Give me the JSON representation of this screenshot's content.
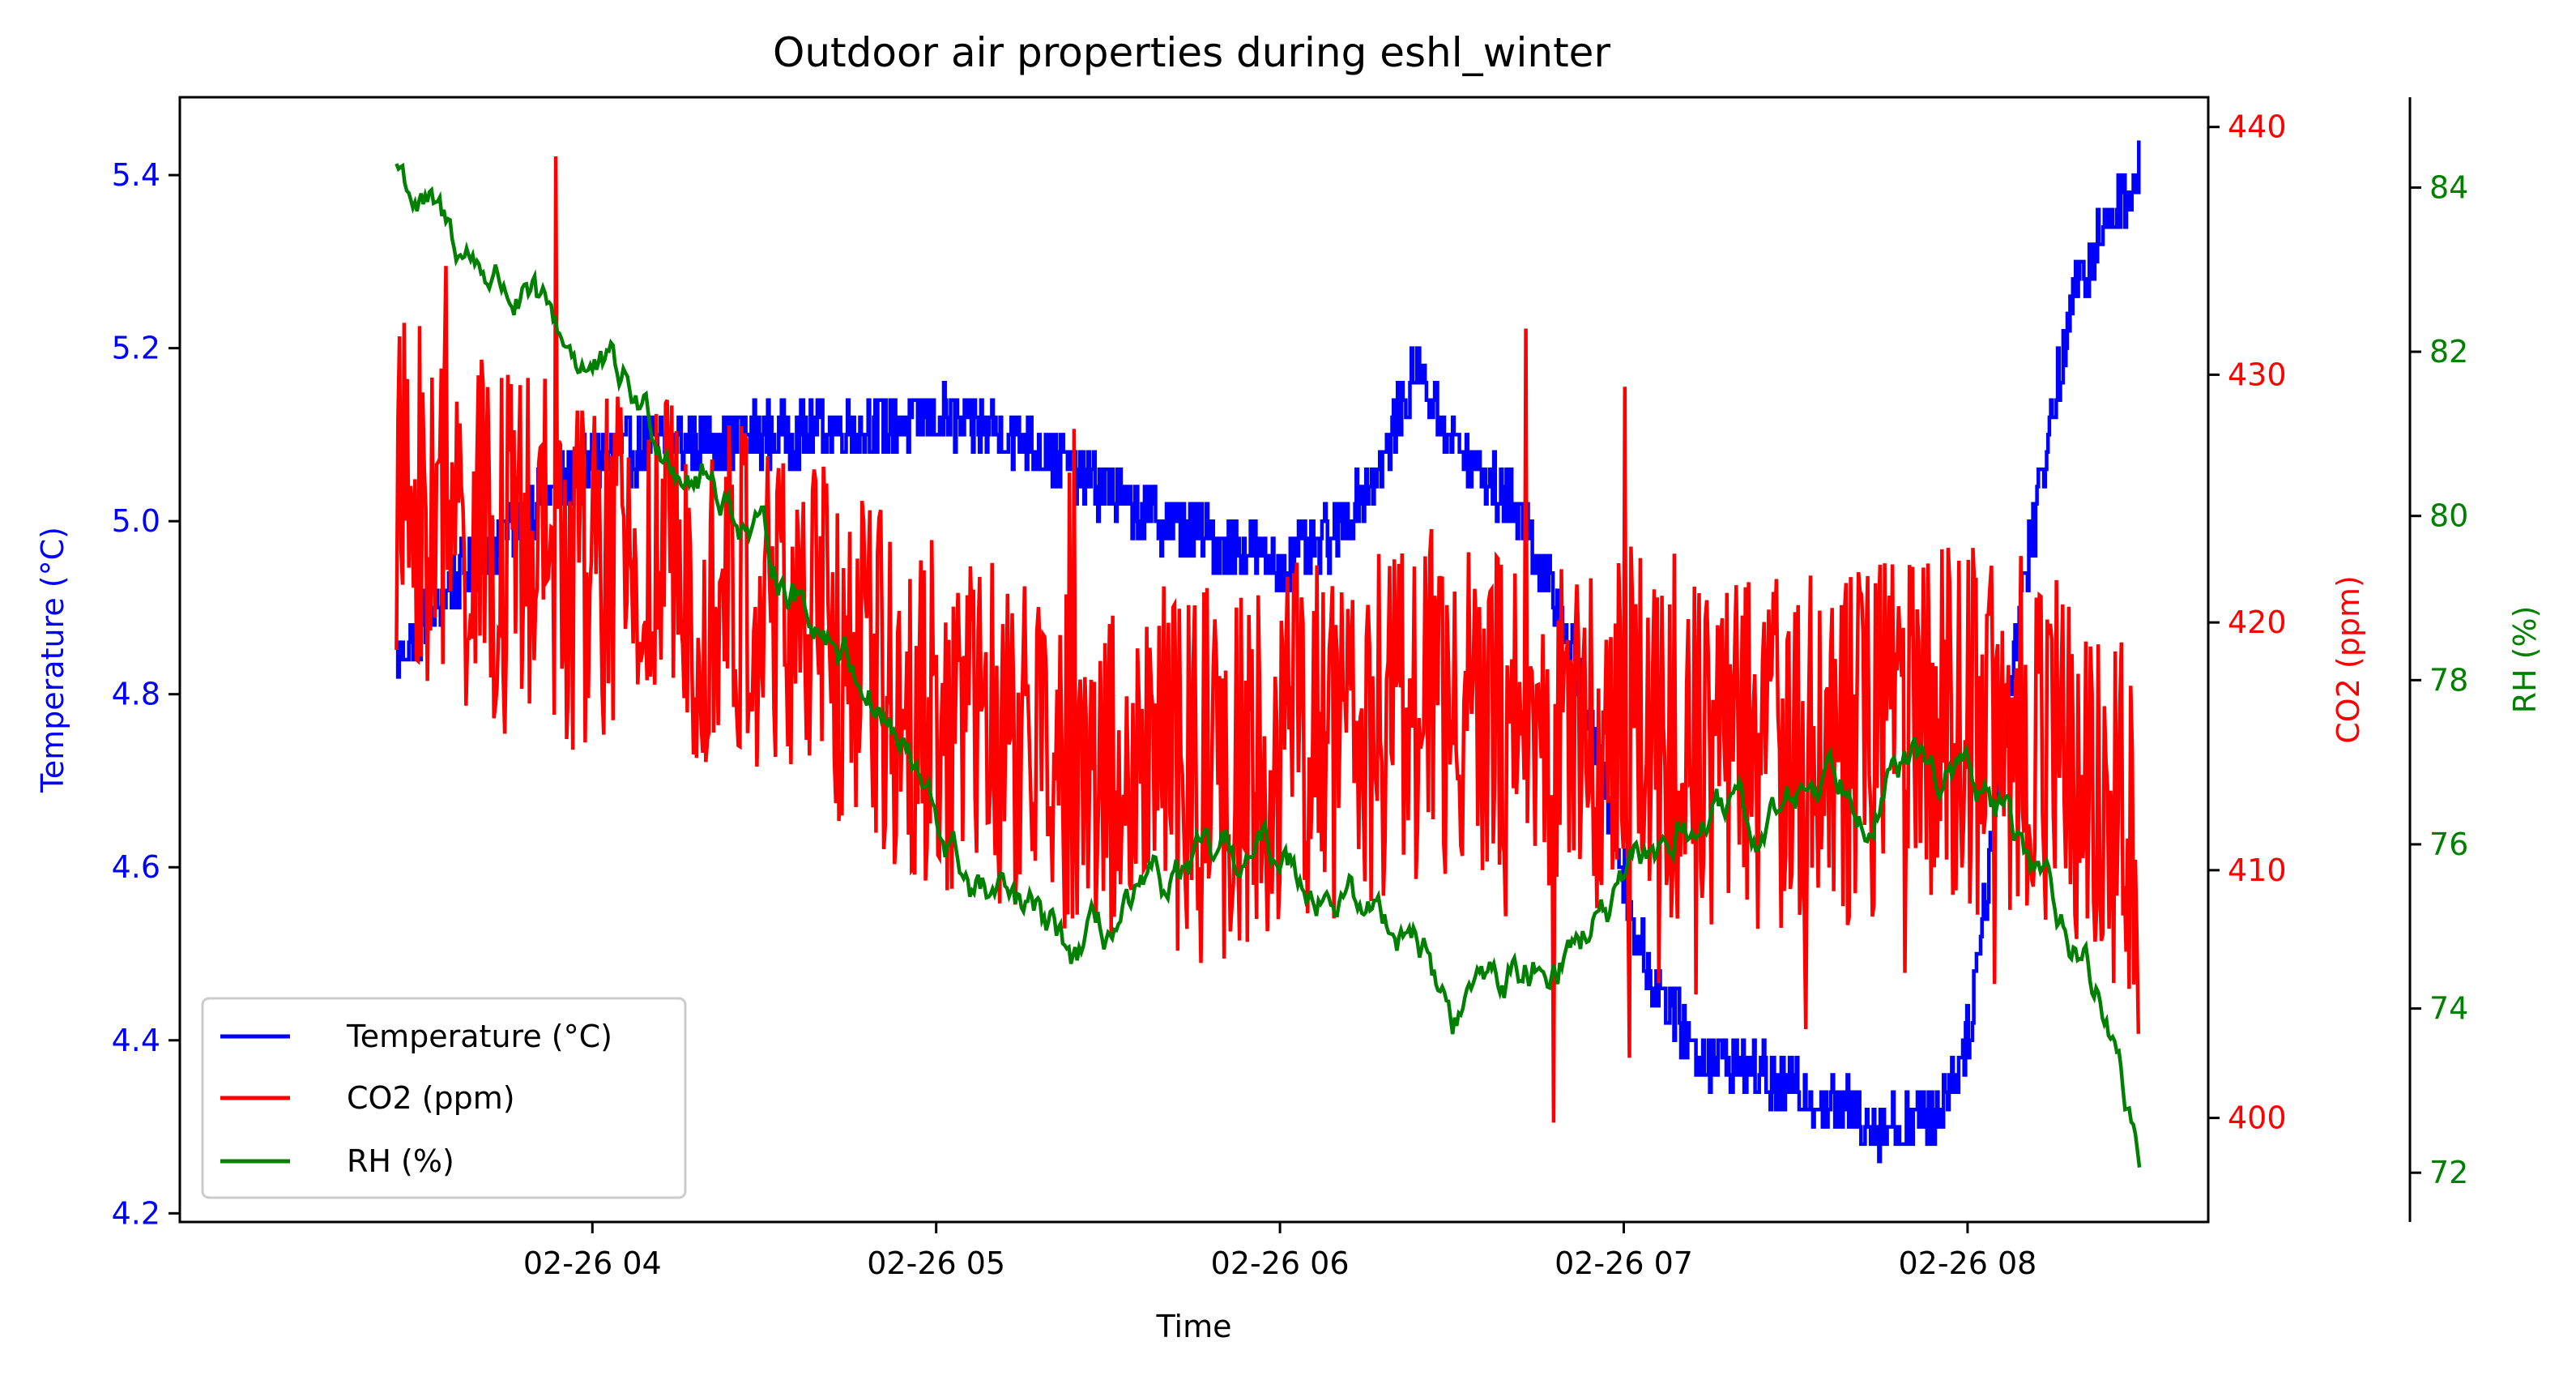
{
  "chart_data": {
    "type": "line",
    "title": "Outdoor air properties during eshl_winter",
    "xlabel": "Time",
    "x_ticks": [
      "02-26 04",
      "02-26 05",
      "02-26 06",
      "02-26 07",
      "02-26 08"
    ],
    "x_tick_hours": [
      4,
      5,
      6,
      7,
      8
    ],
    "xlim_hours": [
      2.8,
      8.7
    ],
    "axes": [
      {
        "id": "temp",
        "label": "Temperature (°C)",
        "color": "#0000ff",
        "side": "left",
        "ylim": [
          4.19,
          5.49
        ],
        "ticks": [
          "4.2",
          "4.4",
          "4.6",
          "4.8",
          "5.0",
          "5.2",
          "5.4"
        ],
        "tick_values": [
          4.2,
          4.4,
          4.6,
          4.8,
          5.0,
          5.2,
          5.4
        ]
      },
      {
        "id": "co2",
        "label": "CO2 (ppm)",
        "color": "#ff0000",
        "side": "right",
        "ylim": [
          395.8,
          441.2
        ],
        "ticks": [
          "400",
          "410",
          "420",
          "430",
          "440"
        ],
        "tick_values": [
          400,
          410,
          420,
          430,
          440
        ]
      },
      {
        "id": "rh",
        "label": "RH (%)",
        "color": "#008000",
        "side": "right-outer",
        "ylim": [
          71.4,
          85.1
        ],
        "ticks": [
          "72",
          "74",
          "76",
          "78",
          "80",
          "82",
          "84"
        ],
        "tick_values": [
          72,
          74,
          76,
          78,
          80,
          82,
          84
        ]
      }
    ],
    "series": [
      {
        "name": "Temperature (°C)",
        "axis": "temp",
        "color": "#0000ff",
        "style": "step",
        "x_hours": [
          3.43,
          3.6,
          3.8,
          4.0,
          4.2,
          4.5,
          4.8,
          5.0,
          5.25,
          5.4,
          5.6,
          5.8,
          6.0,
          6.15,
          6.3,
          6.4,
          6.5,
          6.6,
          6.7,
          6.85,
          6.95,
          7.05,
          7.2,
          7.4,
          7.6,
          7.75,
          7.9,
          8.0,
          8.15,
          8.3,
          8.4,
          8.5
        ],
        "values": [
          4.84,
          4.93,
          5.01,
          5.07,
          5.09,
          5.1,
          5.11,
          5.12,
          5.1,
          5.06,
          5.01,
          4.98,
          4.95,
          4.98,
          5.07,
          5.18,
          5.09,
          5.05,
          5.01,
          4.85,
          4.68,
          4.5,
          4.39,
          4.36,
          4.33,
          4.3,
          4.31,
          4.4,
          4.9,
          5.25,
          5.34,
          5.41
        ],
        "noise": 0.035
      },
      {
        "name": "CO2 (ppm)",
        "axis": "co2",
        "color": "#ff0000",
        "style": "noisy",
        "x_hours": [
          3.43,
          3.7,
          4.0,
          4.3,
          4.6,
          4.9,
          5.2,
          5.5,
          5.8,
          6.1,
          6.4,
          6.7,
          7.0,
          7.3,
          7.6,
          7.9,
          8.2,
          8.45,
          8.5
        ],
        "values": [
          425,
          423,
          422,
          422,
          420,
          417,
          415,
          414,
          414,
          415,
          417,
          415,
          416,
          415,
          415,
          416,
          415,
          412,
          410
        ],
        "noise": 7.5,
        "max": 440,
        "min": 398
      },
      {
        "name": "RH (%)",
        "axis": "rh",
        "color": "#008000",
        "style": "smooth",
        "x_hours": [
          3.43,
          3.5,
          3.6,
          3.7,
          3.8,
          3.9,
          4.0,
          4.1,
          4.2,
          4.3,
          4.4,
          4.5,
          4.6,
          4.7,
          4.8,
          4.9,
          5.0,
          5.1,
          5.2,
          5.3,
          5.4,
          5.5,
          5.6,
          5.7,
          5.8,
          5.9,
          6.0,
          6.1,
          6.2,
          6.3,
          6.4,
          6.5,
          6.6,
          6.7,
          6.8,
          6.9,
          7.0,
          7.1,
          7.2,
          7.3,
          7.4,
          7.5,
          7.6,
          7.7,
          7.8,
          7.9,
          8.0,
          8.1,
          8.2,
          8.3,
          8.4,
          8.48,
          8.5
        ],
        "values": [
          84.3,
          83.8,
          83.3,
          83.0,
          82.6,
          82.2,
          81.8,
          81.5,
          81.0,
          80.6,
          80.2,
          79.6,
          79.0,
          78.6,
          78.0,
          77.2,
          76.2,
          75.5,
          75.2,
          75.0,
          74.6,
          74.9,
          75.2,
          75.5,
          75.7,
          75.8,
          75.9,
          75.6,
          75.3,
          75.1,
          75.0,
          73.8,
          74.4,
          74.4,
          74.7,
          75.0,
          75.3,
          75.9,
          76.3,
          76.3,
          76.1,
          76.6,
          77.0,
          76.7,
          76.9,
          76.9,
          76.8,
          76.3,
          75.6,
          75.0,
          74.0,
          72.6,
          72.3
        ],
        "noise": 0.18
      }
    ],
    "legend": {
      "position": "lower-left",
      "entries": [
        "Temperature (°C)",
        "CO2 (ppm)",
        "RH (%)"
      ]
    },
    "grid": false
  }
}
